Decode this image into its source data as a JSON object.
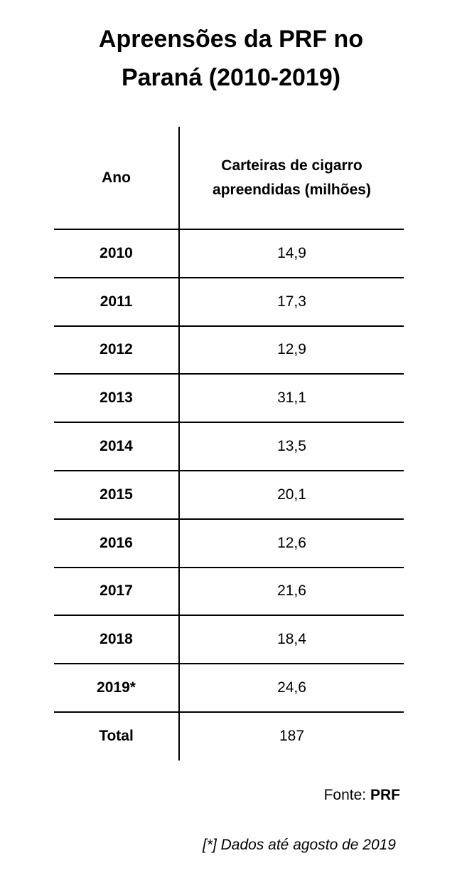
{
  "header": {
    "title": [
      "Apreensões da PRF no",
      "Paraná (2010-2019)"
    ]
  },
  "table": {
    "columns": [
      "Ano",
      "Carteiras de cigarro apreendidas (milhões)"
    ],
    "rows": [
      [
        "2010",
        "14,9"
      ],
      [
        "2011",
        "17,3"
      ],
      [
        "2012",
        "12,9"
      ],
      [
        "2013",
        "31,1"
      ],
      [
        "2014",
        "13,5"
      ],
      [
        "2015",
        "20,1"
      ],
      [
        "2016",
        "12,6"
      ],
      [
        "2017",
        "21,6"
      ],
      [
        "2018",
        "18,4"
      ],
      [
        "2019*",
        "24,6"
      ],
      [
        "Total",
        "187"
      ]
    ]
  },
  "source": {
    "label": "Fonte:",
    "name": "PRF"
  },
  "footnote": "[*] Dados até agosto de 2019"
}
